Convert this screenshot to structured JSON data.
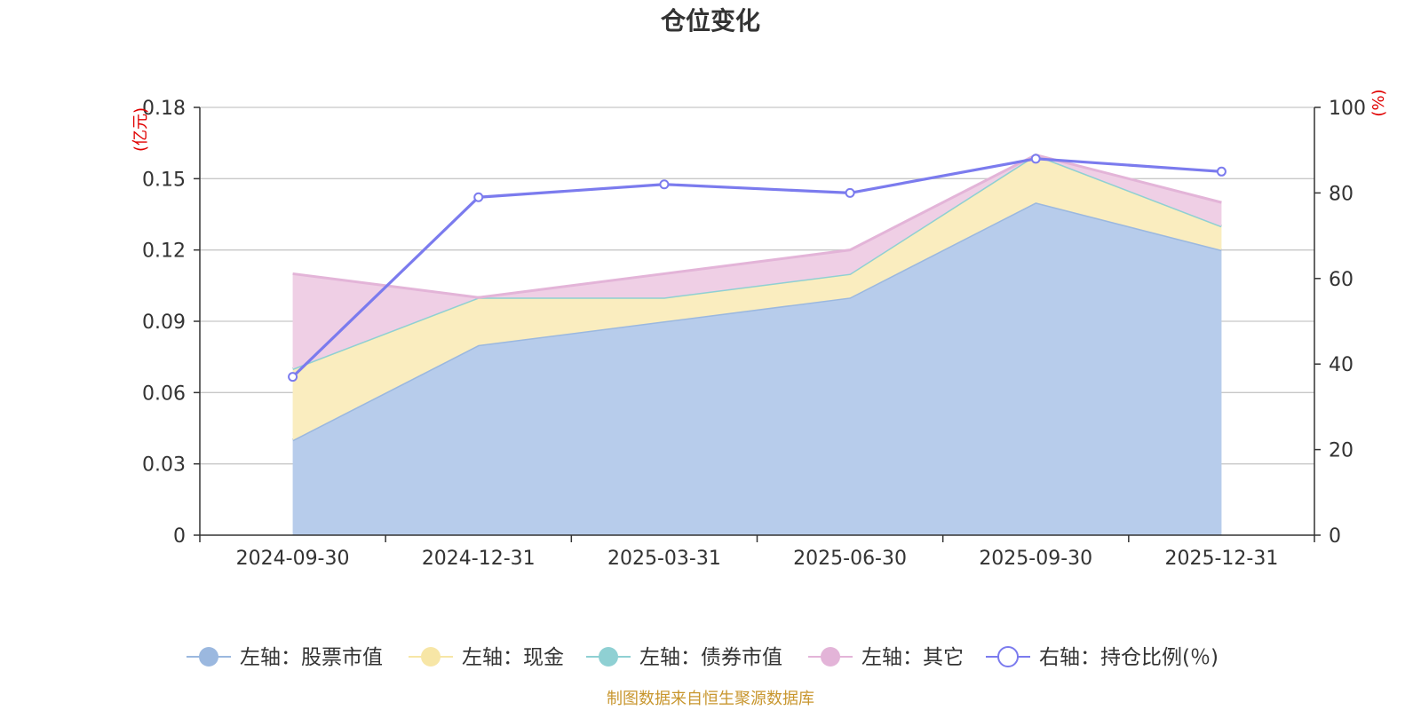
{
  "chart_data": {
    "type": "area",
    "title": "仓位变化",
    "left_axis_unit": "(亿元)",
    "right_axis_unit": "(%)",
    "categories": [
      "2024-09-30",
      "2024-12-31",
      "2025-03-31",
      "2025-06-30",
      "2025-09-30",
      "2025-12-31"
    ],
    "left_ylim": [
      0,
      0.18
    ],
    "left_yticks": [
      "0",
      "0.03",
      "0.06",
      "0.09",
      "0.12",
      "0.15",
      "0.18"
    ],
    "right_ylim": [
      0,
      100
    ],
    "right_yticks": [
      "0",
      "20",
      "40",
      "60",
      "80",
      "100"
    ],
    "stack_order": [
      "stock",
      "cash",
      "bond",
      "other"
    ],
    "series": [
      {
        "key": "stock",
        "name": "左轴：股票市值",
        "axis": "left",
        "type": "stacked-area",
        "color": "#9bb8df",
        "fill": "#b7cceb",
        "values": [
          0.04,
          0.08,
          0.09,
          0.1,
          0.14,
          0.12
        ]
      },
      {
        "key": "cash",
        "name": "左轴：现金",
        "axis": "left",
        "type": "stacked-area",
        "color": "#f7e6a6",
        "fill": "#faedbf",
        "values": [
          0.03,
          0.02,
          0.01,
          0.01,
          0.02,
          0.01
        ]
      },
      {
        "key": "bond",
        "name": "左轴：债券市值",
        "axis": "left",
        "type": "stacked-area",
        "color": "#8fd0d3",
        "fill": "#a9dcde",
        "values": [
          0,
          0,
          0,
          0,
          0,
          0
        ]
      },
      {
        "key": "other",
        "name": "左轴：其它",
        "axis": "left",
        "type": "stacked-area",
        "color": "#e3b4d8",
        "fill": "#efcfe5",
        "values": [
          0.04,
          0.0,
          0.01,
          0.01,
          0.0,
          0.01
        ]
      },
      {
        "key": "ratio",
        "name": "右轴：持仓比例(％)",
        "axis": "right",
        "type": "line",
        "color": "#7b7bee",
        "values": [
          37,
          79,
          82,
          80,
          88,
          85
        ]
      }
    ],
    "legend_position": "bottom",
    "grid": true
  },
  "source_note": "制图数据来自恒生聚源数据库"
}
